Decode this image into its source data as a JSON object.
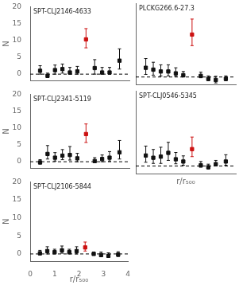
{
  "chart_data": [
    {
      "type": "scatter",
      "title": "SPT-CLJ2146-4633",
      "x": [
        0.4,
        0.7,
        1.0,
        1.3,
        1.6,
        1.9,
        2.25,
        2.6,
        2.9,
        3.2,
        3.6
      ],
      "values": [
        1.0,
        -0.5,
        1.2,
        1.5,
        0.5,
        0.8,
        10.3,
        1.8,
        0.5,
        0.5,
        4.0
      ],
      "yerr_lo": [
        1.0,
        0.5,
        1.2,
        1.2,
        0.5,
        0.8,
        2.5,
        1.8,
        0.5,
        0.5,
        2.5
      ],
      "yerr_hi": [
        1.5,
        0.8,
        1.5,
        1.5,
        1.5,
        1.5,
        3.2,
        2.5,
        1.5,
        1.5,
        3.5
      ],
      "colors": [
        "#111111",
        "#111111",
        "#111111",
        "#111111",
        "#111111",
        "#111111",
        "#cc1111",
        "#111111",
        "#111111",
        "#111111",
        "#111111"
      ],
      "marker": "square",
      "hline": 0.0,
      "xlim": [
        0,
        4
      ],
      "ylim": [
        -2,
        20
      ],
      "xticks": [
        0,
        1,
        2,
        3,
        4
      ],
      "yticks": [
        0,
        5,
        10,
        15,
        20
      ],
      "ylabel": "N",
      "tick_labels": "y",
      "grid": false
    },
    {
      "type": "scatter",
      "title": "PLCKG266.6-27.3",
      "x": [
        0.4,
        0.7,
        1.0,
        1.3,
        1.6,
        1.9,
        2.25,
        2.6,
        2.9,
        3.2,
        3.6
      ],
      "values": [
        2.5,
        2.0,
        1.5,
        1.5,
        1.0,
        0.5,
        11.5,
        0.3,
        -0.5,
        -0.8,
        -0.5
      ],
      "yerr_lo": [
        1.8,
        1.5,
        1.2,
        1.2,
        0.8,
        0.5,
        3.0,
        0.5,
        0.5,
        0.8,
        0.5
      ],
      "yerr_hi": [
        2.5,
        2.0,
        1.8,
        1.8,
        1.5,
        1.0,
        4.2,
        1.0,
        0.8,
        1.0,
        0.8
      ],
      "colors": [
        "#111111",
        "#111111",
        "#111111",
        "#111111",
        "#111111",
        "#111111",
        "#cc1111",
        "#111111",
        "#111111",
        "#111111",
        "#111111"
      ],
      "marker": "square",
      "hline": 0.0,
      "xlim": [
        0,
        4
      ],
      "ylim": [
        -2,
        20
      ],
      "xticks": [
        0,
        1,
        2,
        3,
        4
      ],
      "yticks": [
        0,
        5,
        10,
        15,
        20
      ],
      "tick_labels": false,
      "grid": false
    },
    {
      "type": "scatter",
      "title": "SPT-CLJ2341-5119",
      "x": [
        0.4,
        0.7,
        1.0,
        1.3,
        1.6,
        1.9,
        2.25,
        2.6,
        2.9,
        3.2,
        3.6
      ],
      "values": [
        -0.2,
        2.3,
        1.2,
        1.8,
        2.0,
        1.0,
        8.2,
        0.2,
        0.8,
        1.2,
        2.8
      ],
      "yerr_lo": [
        0.5,
        1.5,
        1.0,
        1.2,
        1.5,
        1.0,
        2.5,
        0.5,
        0.8,
        1.0,
        2.0
      ],
      "yerr_hi": [
        0.8,
        2.5,
        1.5,
        1.8,
        2.5,
        1.5,
        3.0,
        1.0,
        1.2,
        1.8,
        3.5
      ],
      "colors": [
        "#111111",
        "#111111",
        "#111111",
        "#111111",
        "#111111",
        "#111111",
        "#cc1111",
        "#111111",
        "#111111",
        "#111111",
        "#111111"
      ],
      "marker": "square",
      "hline": 0.0,
      "xlim": [
        0,
        4
      ],
      "ylim": [
        -2,
        20
      ],
      "xticks": [
        0,
        1,
        2,
        3,
        4
      ],
      "yticks": [
        0,
        5,
        10,
        15,
        20
      ],
      "ylabel": "N",
      "tick_labels": "y",
      "grid": false
    },
    {
      "type": "scatter",
      "title": "SPT-CLJ0546-5345",
      "x": [
        0.4,
        0.7,
        1.0,
        1.3,
        1.6,
        1.9,
        2.25,
        2.6,
        2.9,
        3.2,
        3.6
      ],
      "values": [
        2.8,
        2.2,
        2.5,
        3.5,
        1.8,
        1.2,
        4.5,
        0.2,
        -0.3,
        0.5,
        1.2
      ],
      "yerr_lo": [
        1.8,
        1.5,
        1.8,
        2.0,
        1.2,
        1.0,
        2.0,
        0.5,
        0.5,
        0.5,
        1.0
      ],
      "yerr_hi": [
        2.5,
        2.2,
        2.5,
        2.8,
        1.8,
        1.5,
        3.2,
        1.0,
        0.8,
        1.0,
        1.8
      ],
      "colors": [
        "#111111",
        "#111111",
        "#111111",
        "#111111",
        "#111111",
        "#111111",
        "#cc1111",
        "#111111",
        "#111111",
        "#111111",
        "#111111"
      ],
      "marker": "square",
      "hline": 0.0,
      "xlim": [
        0,
        4
      ],
      "ylim": [
        -2,
        20
      ],
      "xticks": [
        0,
        1,
        2,
        3,
        4
      ],
      "yticks": [
        0,
        5,
        10,
        15,
        20
      ],
      "xlabel": "r/r₅₀₀",
      "tick_labels": false,
      "grid": false
    },
    {
      "type": "scatter",
      "title": "SPT-CLJ2106-5844",
      "x": [
        0.4,
        0.7,
        1.0,
        1.3,
        1.6,
        1.9,
        2.25,
        2.6,
        2.9,
        3.2,
        3.6
      ],
      "values": [
        0.2,
        0.8,
        0.5,
        1.0,
        0.5,
        0.8,
        1.8,
        0.0,
        -0.3,
        -0.5,
        -0.2
      ],
      "yerr_lo": [
        0.5,
        0.8,
        0.5,
        0.8,
        0.5,
        0.8,
        1.0,
        0.3,
        0.5,
        0.5,
        0.5
      ],
      "yerr_hi": [
        0.8,
        1.2,
        0.8,
        1.2,
        0.8,
        1.2,
        1.5,
        0.5,
        0.8,
        0.8,
        0.8
      ],
      "colors": [
        "#111111",
        "#111111",
        "#111111",
        "#111111",
        "#111111",
        "#111111",
        "#cc1111",
        "#111111",
        "#111111",
        "#111111",
        "#111111"
      ],
      "marker": "square",
      "hline": 0.0,
      "xlim": [
        0,
        4
      ],
      "ylim": [
        -2,
        20
      ],
      "xticks": [
        0,
        1,
        2,
        3,
        4
      ],
      "yticks": [
        0,
        5,
        10,
        15,
        20
      ],
      "xlabel": "r/r₅₀₀",
      "ylabel": "N",
      "tick_labels": true,
      "grid": false
    }
  ]
}
